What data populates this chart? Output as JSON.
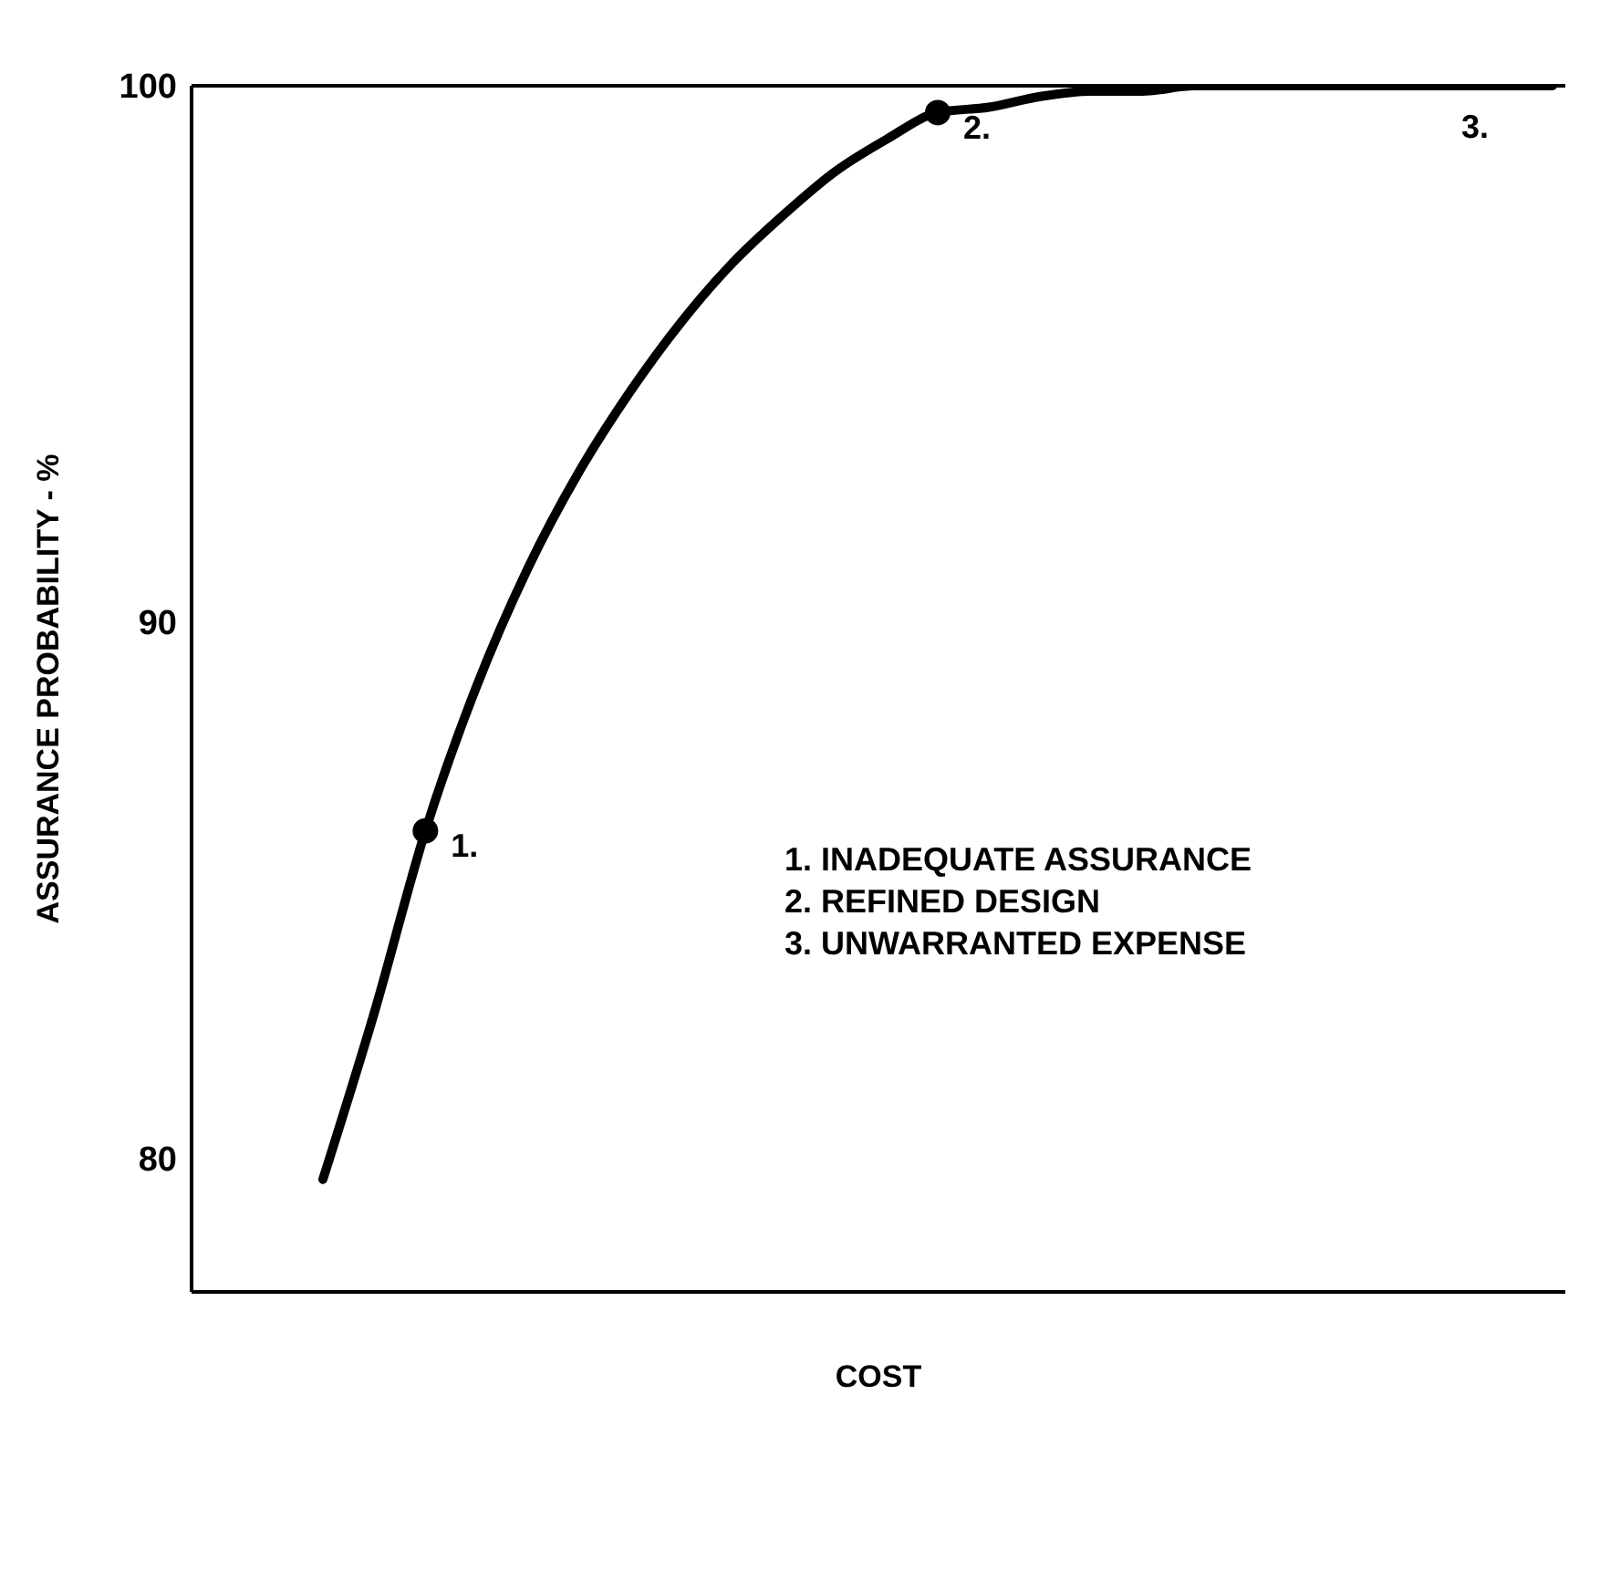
{
  "chart_data": {
    "type": "line",
    "xlabel": "COST",
    "ylabel": "ASSURANCE PROBABILITY - %",
    "categories": [
      null,
      null,
      null,
      null,
      null,
      null,
      null,
      null,
      null,
      null,
      null,
      null,
      null,
      null,
      null,
      null,
      null,
      null,
      null,
      null,
      null,
      null,
      null,
      null,
      null
    ],
    "series": [
      {
        "color": "#000000",
        "marker": "none",
        "values": [
          79.6,
          82.7,
          86.1,
          88.8,
          91.0,
          92.8,
          94.3,
          95.6,
          96.7,
          97.6,
          98.4,
          99.0,
          99.5,
          99.6,
          99.8,
          99.9,
          99.9,
          100,
          100,
          100,
          100,
          100,
          100,
          100,
          100
        ]
      },
      {
        "type": "scatter",
        "color": "#000000",
        "marker": "circle",
        "values": [
          null,
          null,
          86.1,
          null,
          null,
          null,
          null,
          null,
          null,
          null,
          null,
          null,
          99.5,
          null,
          null,
          null,
          null,
          null,
          null,
          null,
          null,
          null,
          null,
          null,
          null
        ]
      }
    ],
    "ylim": [
      77.5,
      100
    ],
    "yticks": [
      80,
      90,
      100
    ],
    "grid": false,
    "legend": false,
    "tick_labels": "y",
    "ref_lines": [
      {
        "axis": "y",
        "value": 100,
        "color": "#000000"
      }
    ],
    "annotations": [
      "1.",
      "2.",
      "3.",
      "1. INADEQUATE ASSURANCE",
      "2. REFINED DESIGN",
      "3. UNWARRANTED EXPENSE"
    ]
  }
}
